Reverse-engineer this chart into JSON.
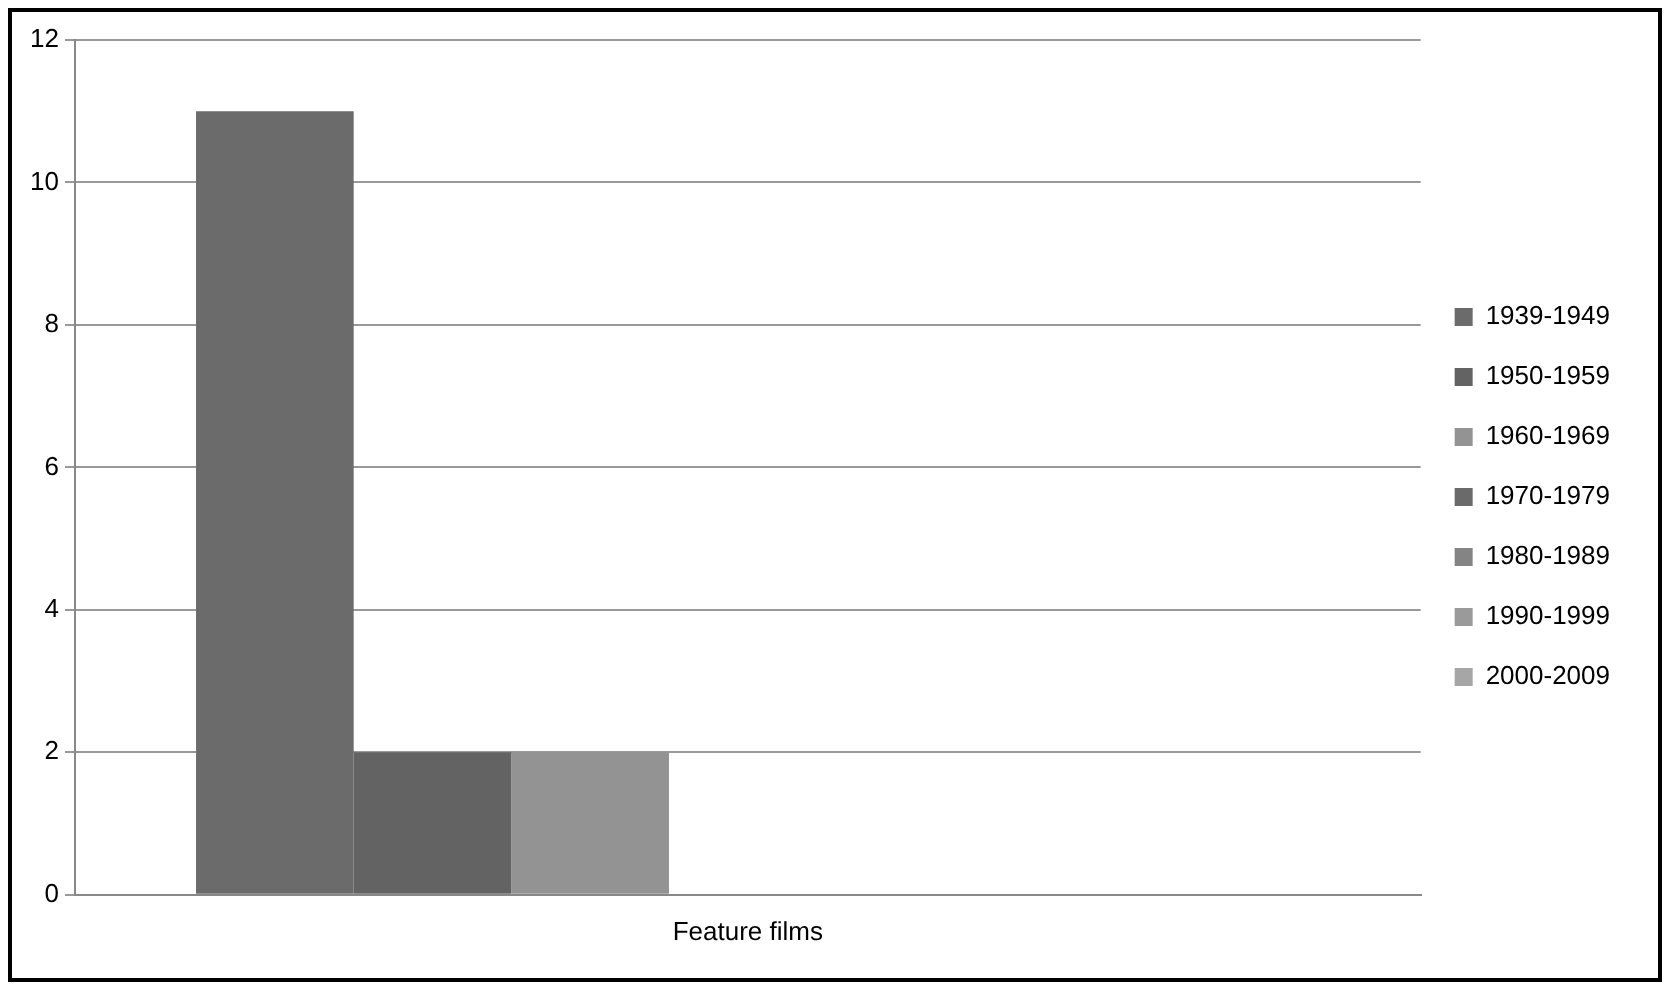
{
  "chart_data": {
    "type": "bar",
    "categories": [
      "Feature films"
    ],
    "series": [
      {
        "name": "1939-1949",
        "color": "#6b6b6b",
        "values": [
          11
        ]
      },
      {
        "name": "1950-1959",
        "color": "#636363",
        "values": [
          2
        ]
      },
      {
        "name": "1960-1969",
        "color": "#939393",
        "values": [
          2
        ]
      },
      {
        "name": "1970-1979",
        "color": "#6a6a6a",
        "values": [
          0
        ]
      },
      {
        "name": "1980-1989",
        "color": "#848484",
        "values": [
          0
        ]
      },
      {
        "name": "1990-1999",
        "color": "#9a9a9a",
        "values": [
          0
        ]
      },
      {
        "name": "2000-2009",
        "color": "#a6a6a6",
        "values": [
          0
        ]
      }
    ],
    "ylim": [
      0,
      12
    ],
    "yticks": [
      0,
      2,
      4,
      6,
      8,
      10,
      12
    ],
    "grid": "y",
    "legend": "right"
  }
}
